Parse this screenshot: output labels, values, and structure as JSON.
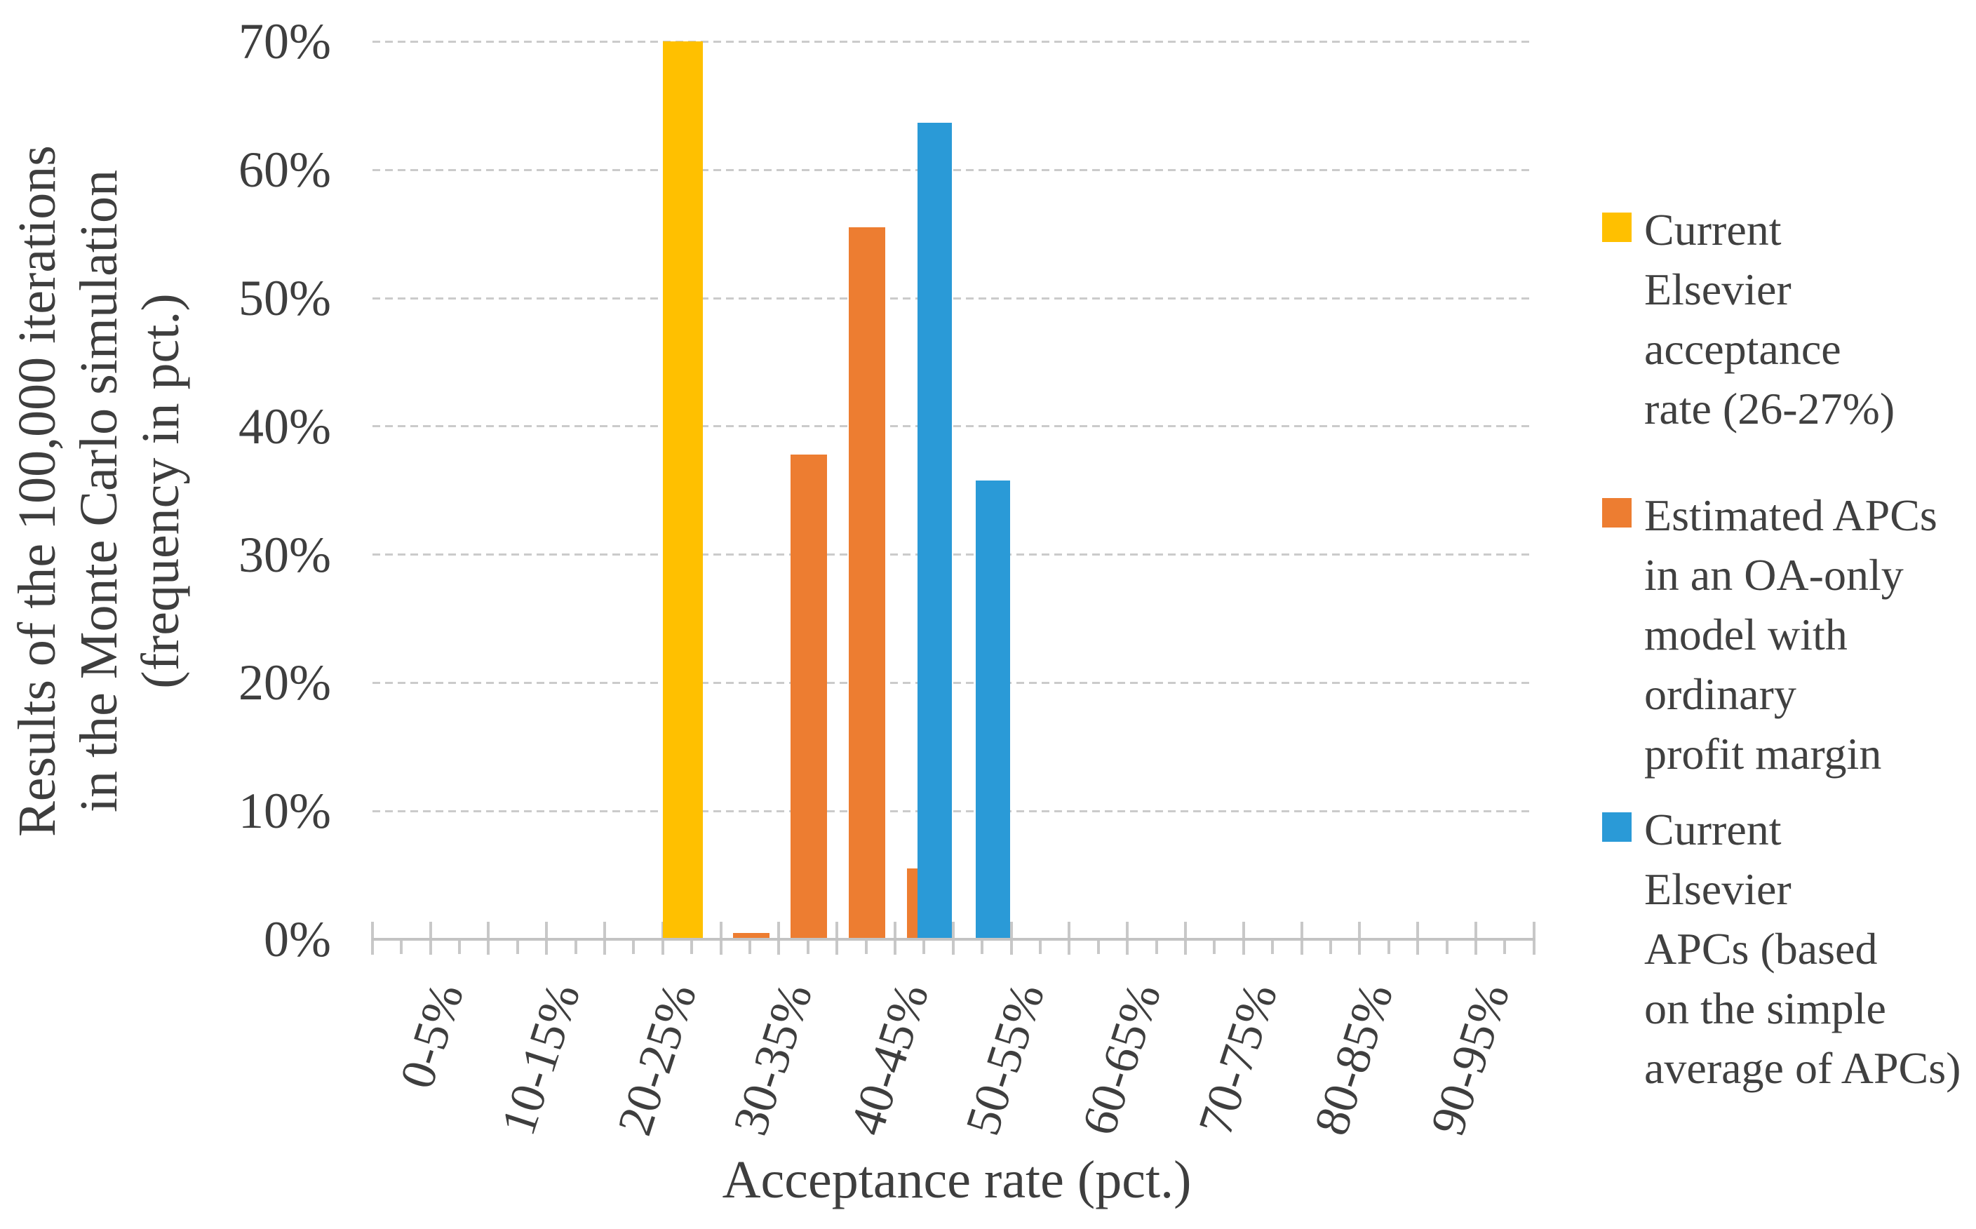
{
  "chart_data": {
    "type": "bar",
    "categories": [
      "0-5%",
      "5-10%",
      "10-15%",
      "15-20%",
      "20-25%",
      "25-30%",
      "30-35%",
      "35-40%",
      "40-45%",
      "45-50%",
      "50-55%",
      "55-60%",
      "60-65%",
      "65-70%",
      "70-75%",
      "75-80%",
      "80-85%",
      "85-90%",
      "90-95%",
      "95-100%"
    ],
    "x_tick_labels_shown": [
      "0-5%",
      "10-15%",
      "20-25%",
      "30-35%",
      "40-45%",
      "50-55%",
      "60-65%",
      "70-75%",
      "80-85%",
      "90-95%"
    ],
    "y_tick_labels": [
      "0%",
      "10%",
      "20%",
      "30%",
      "40%",
      "50%",
      "60%",
      "70%"
    ],
    "xlabel": "Acceptance rate (pct.)",
    "ylabel_lines": [
      "Results of the 100,000 iterations",
      "in the Monte Carlo simulation",
      "(frequency in pct.)"
    ],
    "ylim": [
      0,
      70
    ],
    "y_major_step": 10,
    "grid": "horizontal-dashed",
    "legend_position": "right",
    "series": [
      {
        "name": "Current Elsevier acceptance rate (26-27%)",
        "color": "#FFC000",
        "values": [
          0,
          0,
          0,
          0,
          0,
          70,
          0,
          0,
          0,
          0,
          0,
          0,
          0,
          0,
          0,
          0,
          0,
          0,
          0,
          0
        ]
      },
      {
        "name": "Estimated APCs in an OA-only model with ordinary profit margin",
        "color": "#ED7D31",
        "values": [
          0,
          0,
          0,
          0,
          0,
          0,
          0.5,
          37.8,
          55.5,
          5.5,
          0,
          0,
          0,
          0,
          0,
          0,
          0,
          0,
          0,
          0
        ]
      },
      {
        "name": "Current Elsevier APCs (based on the simple average of APCs)",
        "color": "#2A9AD7",
        "values": [
          0,
          0,
          0,
          0,
          0,
          0,
          0,
          0,
          0,
          63.7,
          35.8,
          0,
          0,
          0,
          0,
          0,
          0,
          0,
          0,
          0
        ]
      }
    ]
  },
  "legend_items": [
    {
      "color": "#FFC000",
      "lines": [
        "Current",
        "Elsevier",
        "acceptance",
        "rate (26-27%)"
      ]
    },
    {
      "color": "#ED7D31",
      "lines": [
        "Estimated APCs",
        "in an OA-only",
        "model with",
        "ordinary",
        "profit margin"
      ]
    },
    {
      "color": "#2A9AD7",
      "lines": [
        "Current",
        "Elsevier",
        "APCs (based",
        "on the simple",
        "average of APCs)"
      ]
    }
  ],
  "style_colors": {
    "gridline": "#cbcbcb",
    "axis": "#c3c3c3",
    "text": "#3e3e3e"
  }
}
